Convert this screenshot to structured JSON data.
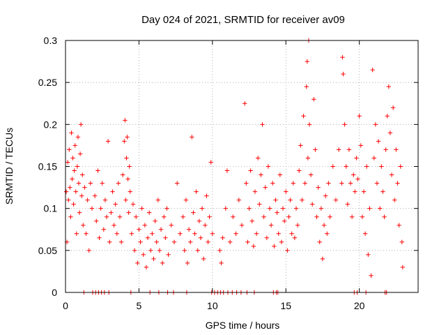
{
  "chart_data": {
    "type": "scatter",
    "title": "Day 024 of 2021, SRMTID for receiver av09",
    "xlabel": "GPS time / hours",
    "ylabel": "SRMTID / TECUs",
    "xlim": [
      0,
      24
    ],
    "ylim": [
      0,
      0.3
    ],
    "x_ticks": [
      0,
      5,
      10,
      15,
      20
    ],
    "x_tick_labels": [
      "0",
      "5",
      "10",
      "15",
      "20"
    ],
    "y_ticks": [
      0,
      0.05,
      0.1,
      0.15,
      0.2,
      0.25,
      0.3
    ],
    "y_tick_labels": [
      "0",
      "0.05",
      "0.1",
      "0.15",
      "0.2",
      "0.25",
      "0.3"
    ],
    "grid": true,
    "marker": "plus",
    "series": [
      {
        "name": "SRMTID",
        "color": "#ff0000",
        "points": [
          [
            0.05,
            0.12
          ],
          [
            0.1,
            0.06
          ],
          [
            0.15,
            0.155
          ],
          [
            0.2,
            0.11
          ],
          [
            0.25,
            0.17
          ],
          [
            0.3,
            0.125
          ],
          [
            0.35,
            0.09
          ],
          [
            0.4,
            0.19
          ],
          [
            0.45,
            0.135
          ],
          [
            0.5,
            0.16
          ],
          [
            0.55,
            0.105
          ],
          [
            0.6,
            0.145
          ],
          [
            0.65,
            0.175
          ],
          [
            0.7,
            0.12
          ],
          [
            0.75,
            0.07
          ],
          [
            0.8,
            0.15
          ],
          [
            0.85,
            0.185
          ],
          [
            0.9,
            0.13
          ],
          [
            0.95,
            0.095
          ],
          [
            1.0,
            0.165
          ],
          [
            1.05,
            0.2
          ],
          [
            1.1,
            0.115
          ],
          [
            1.15,
            0.14
          ],
          [
            1.2,
            0.08
          ],
          [
            1.3,
            0.125
          ],
          [
            1.4,
            0.07
          ],
          [
            1.5,
            0.11
          ],
          [
            1.6,
            0.05
          ],
          [
            1.7,
            0.13
          ],
          [
            1.8,
            0.1
          ],
          [
            2.0,
            0.115
          ],
          [
            2.1,
            0.085
          ],
          [
            2.2,
            0.145
          ],
          [
            2.3,
            0.065
          ],
          [
            2.4,
            0.1
          ],
          [
            2.5,
            0.13
          ],
          [
            2.6,
            0.075
          ],
          [
            2.7,
            0.11
          ],
          [
            2.8,
            0.09
          ],
          [
            2.9,
            0.18
          ],
          [
            3.0,
            0.06
          ],
          [
            3.1,
            0.095
          ],
          [
            3.2,
            0.12
          ],
          [
            3.3,
            0.08
          ],
          [
            3.4,
            0.105
          ],
          [
            3.5,
            0.07
          ],
          [
            3.6,
            0.13
          ],
          [
            3.7,
            0.09
          ],
          [
            3.8,
            0.06
          ],
          [
            3.9,
            0.14
          ],
          [
            4.0,
            0.18
          ],
          [
            4.05,
            0.205
          ],
          [
            4.1,
            0.11
          ],
          [
            4.15,
            0.16
          ],
          [
            4.2,
            0.185
          ],
          [
            4.25,
            0.135
          ],
          [
            4.3,
            0.095
          ],
          [
            4.35,
            0.15
          ],
          [
            4.4,
            0.12
          ],
          [
            4.5,
            0.07
          ],
          [
            4.6,
            0.105
          ],
          [
            4.7,
            0.05
          ],
          [
            4.8,
            0.09
          ],
          [
            4.9,
            0.035
          ],
          [
            5.0,
            0.075
          ],
          [
            5.1,
            0.06
          ],
          [
            5.2,
            0.1
          ],
          [
            5.3,
            0.045
          ],
          [
            5.4,
            0.08
          ],
          [
            5.5,
            0.03
          ],
          [
            5.6,
            0.065
          ],
          [
            5.7,
            0.095
          ],
          [
            5.8,
            0.05
          ],
          [
            5.9,
            0.07
          ],
          [
            6.0,
            0.04
          ],
          [
            6.1,
            0.085
          ],
          [
            6.2,
            0.06
          ],
          [
            6.3,
            0.11
          ],
          [
            6.4,
            0.05
          ],
          [
            6.5,
            0.075
          ],
          [
            6.6,
            0.035
          ],
          [
            6.7,
            0.09
          ],
          [
            6.8,
            0.065
          ],
          [
            6.9,
            0.1
          ],
          [
            7.0,
            0.045
          ],
          [
            7.2,
            0.08
          ],
          [
            7.4,
            0.06
          ],
          [
            7.6,
            0.13
          ],
          [
            7.8,
            0.07
          ],
          [
            8.0,
            0.09
          ],
          [
            8.1,
            0.05
          ],
          [
            8.2,
            0.11
          ],
          [
            8.3,
            0.035
          ],
          [
            8.4,
            0.075
          ],
          [
            8.5,
            0.06
          ],
          [
            8.6,
            0.185
          ],
          [
            8.7,
            0.095
          ],
          [
            8.8,
            0.07
          ],
          [
            8.9,
            0.12
          ],
          [
            9.0,
            0.05
          ],
          [
            9.1,
            0.085
          ],
          [
            9.2,
            0.065
          ],
          [
            9.3,
            0.1
          ],
          [
            9.4,
            0.04
          ],
          [
            9.5,
            0.08
          ],
          [
            9.6,
            0.115
          ],
          [
            9.7,
            0.06
          ],
          [
            9.8,
            0.09
          ],
          [
            9.9,
            0.155
          ],
          [
            10.0,
            0.07
          ],
          [
            10.5,
            0.05
          ],
          [
            10.6,
            0.035
          ],
          [
            10.7,
            0.065
          ],
          [
            10.9,
            0.1
          ],
          [
            11.0,
            0.145
          ],
          [
            11.2,
            0.06
          ],
          [
            11.4,
            0.09
          ],
          [
            11.6,
            0.07
          ],
          [
            11.8,
            0.11
          ],
          [
            12.0,
            0.08
          ],
          [
            12.2,
            0.225
          ],
          [
            12.3,
            0.13
          ],
          [
            12.4,
            0.06
          ],
          [
            12.5,
            0.1
          ],
          [
            12.6,
            0.145
          ],
          [
            12.7,
            0.085
          ],
          [
            12.8,
            0.055
          ],
          [
            12.9,
            0.12
          ],
          [
            13.0,
            0.07
          ],
          [
            13.1,
            0.16
          ],
          [
            13.2,
            0.105
          ],
          [
            13.3,
            0.14
          ],
          [
            13.4,
            0.2
          ],
          [
            13.5,
            0.09
          ],
          [
            13.6,
            0.125
          ],
          [
            13.7,
            0.065
          ],
          [
            13.8,
            0.15
          ],
          [
            13.9,
            0.1
          ],
          [
            14.0,
            0.08
          ],
          [
            14.1,
            0.13
          ],
          [
            14.2,
            0.055
          ],
          [
            14.3,
            0.11
          ],
          [
            14.4,
            0.095
          ],
          [
            14.5,
            0.07
          ],
          [
            14.6,
            0.14
          ],
          [
            14.7,
            0.06
          ],
          [
            14.8,
            0.1
          ],
          [
            14.9,
            0.085
          ],
          [
            15.0,
            0.12
          ],
          [
            15.1,
            0.05
          ],
          [
            15.2,
            0.09
          ],
          [
            15.3,
            0.11
          ],
          [
            15.4,
            0.07
          ],
          [
            15.5,
            0.13
          ],
          [
            15.6,
            0.065
          ],
          [
            15.7,
            0.1
          ],
          [
            15.8,
            0.08
          ],
          [
            15.9,
            0.145
          ],
          [
            16.0,
            0.175
          ],
          [
            16.1,
            0.11
          ],
          [
            16.2,
            0.21
          ],
          [
            16.3,
            0.13
          ],
          [
            16.4,
            0.245
          ],
          [
            16.45,
            0.275
          ],
          [
            16.5,
            0.16
          ],
          [
            16.55,
            0.3
          ],
          [
            16.6,
            0.2
          ],
          [
            16.7,
            0.14
          ],
          [
            16.8,
            0.105
          ],
          [
            16.9,
            0.23
          ],
          [
            17.0,
            0.17
          ],
          [
            17.1,
            0.09
          ],
          [
            17.2,
            0.125
          ],
          [
            17.3,
            0.06
          ],
          [
            17.4,
            0.1
          ],
          [
            17.5,
            0.04
          ],
          [
            17.6,
            0.08
          ],
          [
            17.7,
            0.115
          ],
          [
            17.8,
            0.07
          ],
          [
            17.9,
            0.13
          ],
          [
            18.0,
            0.09
          ],
          [
            18.2,
            0.15
          ],
          [
            18.4,
            0.11
          ],
          [
            18.6,
            0.17
          ],
          [
            18.8,
            0.13
          ],
          [
            18.85,
            0.28
          ],
          [
            18.9,
            0.26
          ],
          [
            19.0,
            0.2
          ],
          [
            19.1,
            0.15
          ],
          [
            19.2,
            0.105
          ],
          [
            19.3,
            0.17
          ],
          [
            19.4,
            0.13
          ],
          [
            19.5,
            0.09
          ],
          [
            19.6,
            0.14
          ],
          [
            19.7,
            0.12
          ],
          [
            19.8,
            0.16
          ],
          [
            19.9,
            0.135
          ],
          [
            20.0,
            0.21
          ],
          [
            20.1,
            0.175
          ],
          [
            20.2,
            0.09
          ],
          [
            20.3,
            0.12
          ],
          [
            20.4,
            0.07
          ],
          [
            20.5,
            0.15
          ],
          [
            20.6,
            0.045
          ],
          [
            20.7,
            0.1
          ],
          [
            20.8,
            0.02
          ],
          [
            20.9,
            0.265
          ],
          [
            21.0,
            0.16
          ],
          [
            21.1,
            0.2
          ],
          [
            21.2,
            0.13
          ],
          [
            21.3,
            0.18
          ],
          [
            21.4,
            0.1
          ],
          [
            21.5,
            0.15
          ],
          [
            21.6,
            0.12
          ],
          [
            21.7,
            0.09
          ],
          [
            21.8,
            0.17
          ],
          [
            21.9,
            0.21
          ],
          [
            22.0,
            0.245
          ],
          [
            22.1,
            0.19
          ],
          [
            22.2,
            0.14
          ],
          [
            22.3,
            0.22
          ],
          [
            22.4,
            0.11
          ],
          [
            22.5,
            0.17
          ],
          [
            22.6,
            0.13
          ],
          [
            22.7,
            0.08
          ],
          [
            22.8,
            0.15
          ],
          [
            22.9,
            0.06
          ],
          [
            22.95,
            0.03
          ],
          [
            1.25,
            0
          ],
          [
            1.85,
            0
          ],
          [
            2.05,
            0
          ],
          [
            2.25,
            0
          ],
          [
            2.45,
            0
          ],
          [
            2.65,
            0
          ],
          [
            2.95,
            0
          ],
          [
            4.45,
            0
          ],
          [
            5.75,
            0
          ],
          [
            6.35,
            0
          ],
          [
            6.95,
            0
          ],
          [
            7.35,
            0
          ],
          [
            8.25,
            0
          ],
          [
            9.95,
            0
          ],
          [
            10.15,
            0
          ],
          [
            10.35,
            0
          ],
          [
            10.55,
            0
          ],
          [
            10.75,
            0
          ],
          [
            11.05,
            0
          ],
          [
            11.35,
            0
          ],
          [
            11.65,
            0
          ],
          [
            11.95,
            0
          ],
          [
            12.35,
            0
          ],
          [
            12.85,
            0
          ],
          [
            14.15,
            0
          ],
          [
            14.35,
            0
          ],
          [
            14.45,
            0
          ],
          [
            19.65,
            0
          ],
          [
            19.85,
            0
          ],
          [
            20.45,
            0
          ],
          [
            21.75,
            0
          ],
          [
            21.85,
            0
          ]
        ]
      }
    ]
  }
}
